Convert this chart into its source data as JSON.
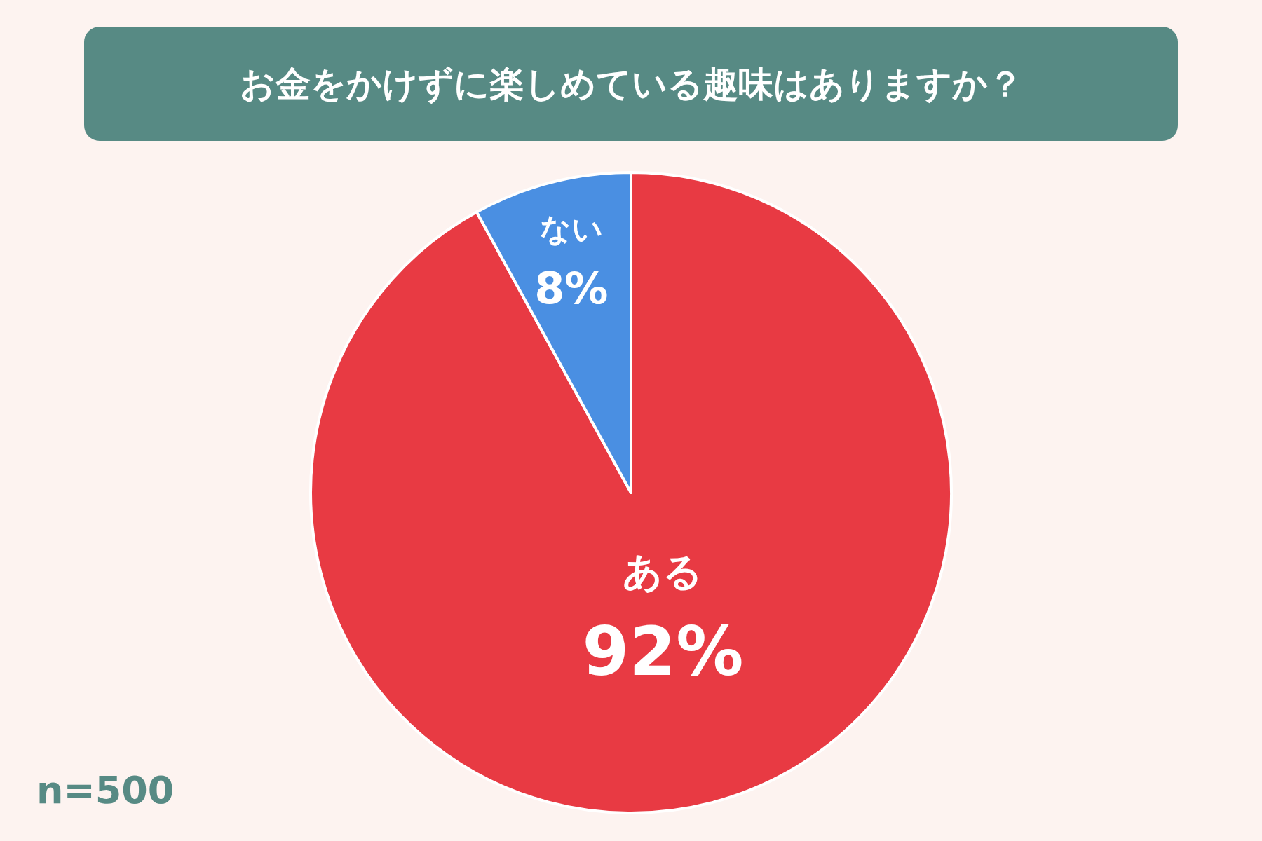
{
  "chart_data": {
    "type": "pie",
    "title": "お金をかけずに楽しめている趣味はありますか？",
    "categories": [
      "ある",
      "ない"
    ],
    "values": [
      92,
      8
    ],
    "colors": [
      "#e83a43",
      "#4a8fe2"
    ],
    "value_labels": [
      "92%",
      "8%"
    ],
    "annotations": [
      "n=500"
    ]
  }
}
